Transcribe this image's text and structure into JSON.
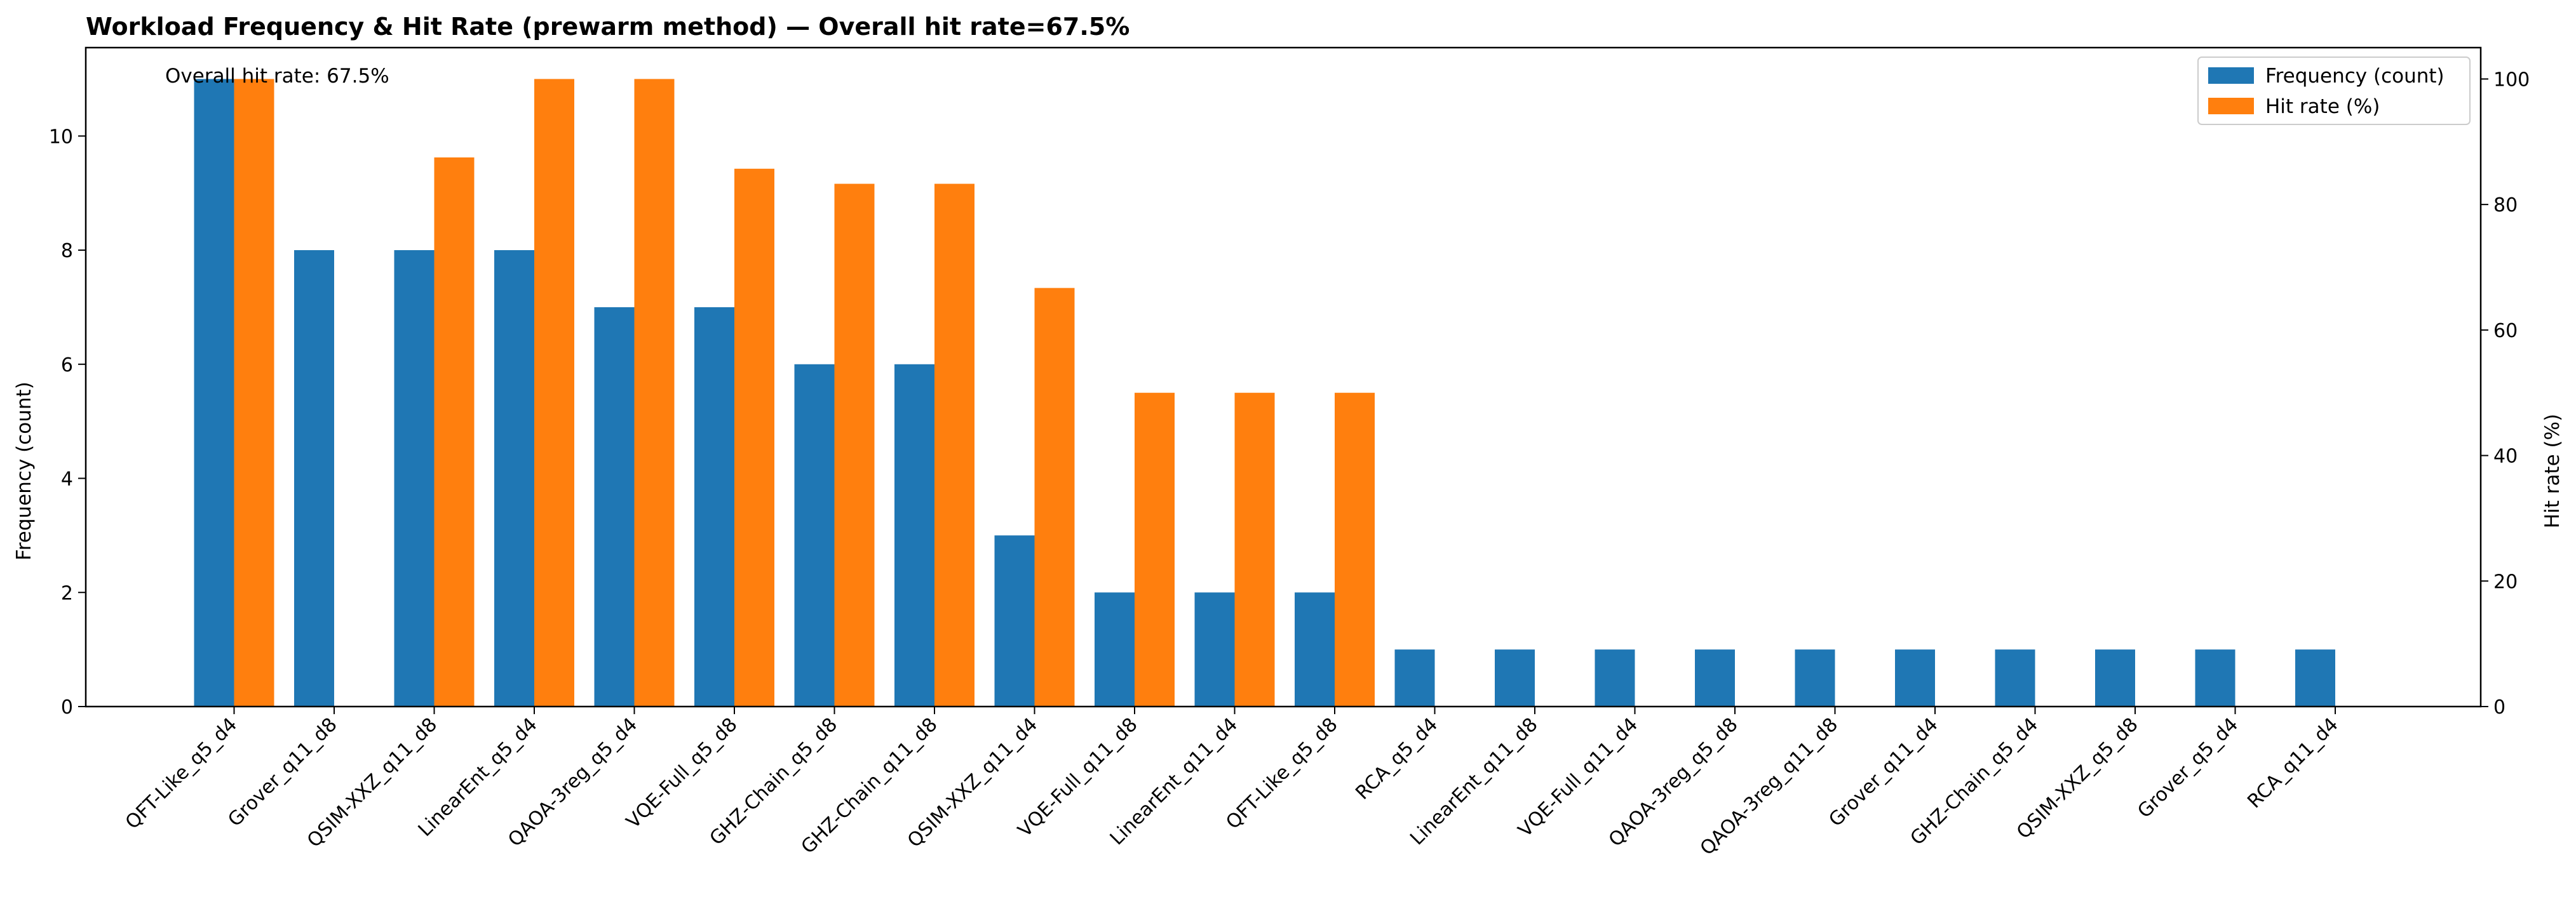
{
  "chart_data": {
    "type": "bar",
    "title": "Workload Frequency & Hit Rate (prewarm method) — Overall hit rate=67.5%",
    "annotation": "Overall hit rate: 67.5%",
    "categories": [
      "QFT-Like_q5_d4",
      "Grover_q11_d8",
      "QSIM-XXZ_q11_d8",
      "LinearEnt_q5_d4",
      "QAOA-3reg_q5_d4",
      "VQE-Full_q5_d8",
      "GHZ-Chain_q5_d8",
      "GHZ-Chain_q11_d8",
      "QSIM-XXZ_q11_d4",
      "VQE-Full_q11_d8",
      "LinearEnt_q11_d4",
      "QFT-Like_q5_d8",
      "RCA_q5_d4",
      "LinearEnt_q11_d8",
      "VQE-Full_q11_d4",
      "QAOA-3reg_q5_d8",
      "QAOA-3reg_q11_d8",
      "Grover_q11_d4",
      "GHZ-Chain_q5_d4",
      "QSIM-XXZ_q5_d8",
      "Grover_q5_d4",
      "RCA_q11_d4"
    ],
    "series": [
      {
        "name": "Frequency (count)",
        "axis": "left",
        "color": "#1f77b4",
        "values": [
          11,
          8,
          8,
          8,
          7,
          7,
          6,
          6,
          3,
          2,
          2,
          2,
          1,
          1,
          1,
          1,
          1,
          1,
          1,
          1,
          1,
          1
        ]
      },
      {
        "name": "Hit rate (%)",
        "axis": "right",
        "color": "#ff7f0e",
        "values": [
          100,
          0,
          87.5,
          100,
          100,
          85.7,
          83.3,
          83.3,
          66.7,
          50,
          50,
          50,
          0,
          0,
          0,
          0,
          0,
          0,
          0,
          0,
          0,
          0
        ]
      }
    ],
    "ylabel": "Frequency (count)",
    "y2label": "Hit rate (%)",
    "ylim": [
      0,
      11.55
    ],
    "y2lim": [
      0,
      105
    ],
    "yticks": [
      0,
      2,
      4,
      6,
      8,
      10
    ],
    "y2ticks": [
      0,
      20,
      40,
      60,
      80,
      100
    ],
    "grid": false,
    "legend_position": "top-right"
  }
}
